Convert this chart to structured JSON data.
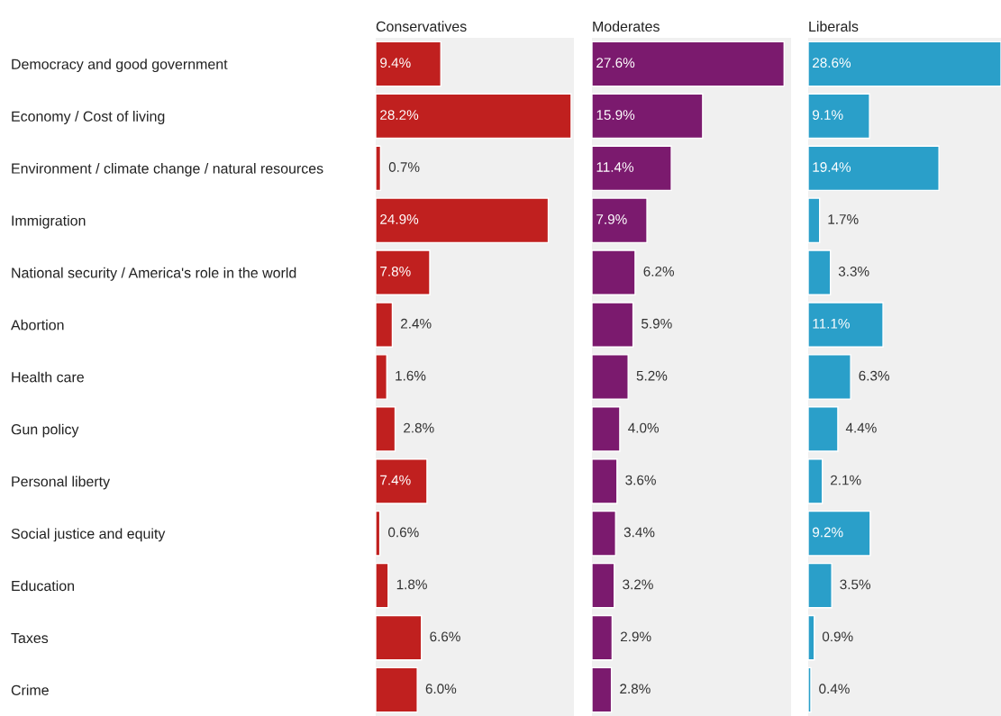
{
  "chart_data": [
    {
      "type": "bar",
      "orientation": "horizontal",
      "title": "Conservatives",
      "categories": [
        "Democracy and good government",
        "Economy / Cost of living",
        "Environment / climate change / natural resources",
        "Immigration",
        "National security / America's role in the world",
        "Abortion",
        "Health care",
        "Gun policy",
        "Personal liberty",
        "Social justice and equity",
        "Education",
        "Taxes",
        "Crime"
      ],
      "values": [
        9.4,
        28.2,
        0.7,
        24.9,
        7.8,
        2.4,
        1.6,
        2.8,
        7.4,
        0.6,
        1.8,
        6.6,
        6.0
      ],
      "value_labels": [
        "9.4%",
        "28.2%",
        "0.7%",
        "24.9%",
        "7.8%",
        "2.4%",
        "1.6%",
        "2.8%",
        "7.4%",
        "0.6%",
        "1.8%",
        "6.6%",
        "6.0%"
      ],
      "color": "#c0201f",
      "xlim": [
        0,
        28.6
      ],
      "tick_labels": "y"
    },
    {
      "type": "bar",
      "orientation": "horizontal",
      "title": "Moderates",
      "values": [
        27.6,
        15.9,
        11.4,
        7.9,
        6.2,
        5.9,
        5.2,
        4.0,
        3.6,
        3.4,
        3.2,
        2.9,
        2.8
      ],
      "value_labels": [
        "27.6%",
        "15.9%",
        "11.4%",
        "7.9%",
        "6.2%",
        "5.9%",
        "5.2%",
        "4.0%",
        "3.6%",
        "3.4%",
        "3.2%",
        "2.9%",
        "2.8%"
      ],
      "color": "#7b1a6e",
      "xlim": [
        0,
        28.6
      ],
      "tick_labels": false
    },
    {
      "type": "bar",
      "orientation": "horizontal",
      "title": "Liberals",
      "values": [
        28.6,
        9.1,
        19.4,
        1.7,
        3.3,
        11.1,
        6.3,
        4.4,
        2.1,
        9.2,
        3.5,
        0.9,
        0.4
      ],
      "value_labels": [
        "28.6%",
        "9.1%",
        "19.4%",
        "1.7%",
        "3.3%",
        "11.1%",
        "6.3%",
        "4.4%",
        "2.1%",
        "9.2%",
        "3.5%",
        "0.9%",
        "0.4%"
      ],
      "color": "#2a9fc9",
      "xlim": [
        0,
        28.6
      ],
      "tick_labels": false
    }
  ]
}
